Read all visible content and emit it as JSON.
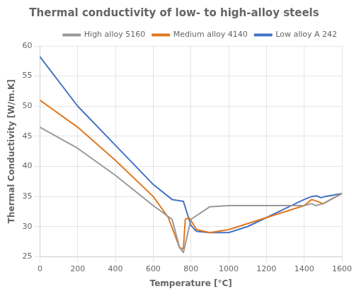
{
  "chart_data": {
    "type": "line",
    "title": "Thermal conductivity of low- to high-alloy steels",
    "xlabel": "Temperature [°C]",
    "ylabel": "Thermal Conductivity [W/m.K]",
    "xlim": [
      0,
      1600
    ],
    "ylim": [
      25,
      60
    ],
    "xticks": [
      0,
      200,
      400,
      600,
      800,
      1000,
      1200,
      1400,
      1600
    ],
    "yticks": [
      25,
      30,
      35,
      40,
      45,
      50,
      55,
      60
    ],
    "grid": true,
    "legend": "upper right",
    "series": [
      {
        "name": "High alloy 5160",
        "color": "#999999",
        "x": [
          0,
          200,
          400,
          600,
          700,
          740,
          760,
          800,
          900,
          1000,
          1100,
          1200,
          1300,
          1400,
          1440,
          1460,
          1500,
          1600
        ],
        "values": [
          46.5,
          43.0,
          38.5,
          33.5,
          31.2,
          26.5,
          25.7,
          31.2,
          33.3,
          33.5,
          33.5,
          33.5,
          33.5,
          33.5,
          33.8,
          33.5,
          33.8,
          35.5
        ]
      },
      {
        "name": "Medium alloy 4140",
        "color": "#E07820",
        "x": [
          0,
          200,
          400,
          600,
          680,
          740,
          760,
          770,
          790,
          830,
          900,
          1000,
          1100,
          1200,
          1300,
          1400,
          1440,
          1460,
          1500,
          1600
        ],
        "values": [
          51.0,
          46.5,
          41.0,
          35.0,
          31.5,
          26.5,
          26.3,
          31.2,
          31.5,
          29.5,
          29.0,
          29.5,
          30.5,
          31.5,
          32.5,
          33.5,
          34.5,
          34.3,
          33.8,
          35.5
        ]
      },
      {
        "name": "Low alloy A 242",
        "color": "#4472C4",
        "x": [
          0,
          200,
          400,
          600,
          700,
          760,
          800,
          830,
          900,
          1000,
          1100,
          1200,
          1300,
          1400,
          1440,
          1465,
          1490,
          1510,
          1600
        ],
        "values": [
          58.2,
          50.0,
          43.5,
          37.0,
          34.5,
          34.2,
          30.2,
          29.2,
          29.0,
          29.0,
          30.0,
          31.5,
          33.0,
          34.5,
          35.0,
          35.1,
          34.8,
          35.0,
          35.5
        ]
      }
    ]
  }
}
